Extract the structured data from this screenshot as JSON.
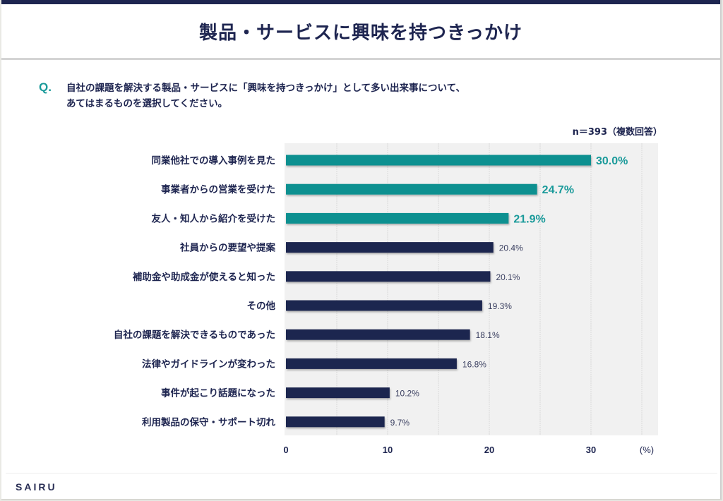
{
  "title": "製品・サービスに興味を持つきっかけ",
  "question": {
    "mark": "Q.",
    "line1": "自社の課題を解決する製品・サービスに「興味を持つきっかけ」として多い出来事について、",
    "line2": "あてはまるものを選択してください。"
  },
  "sample_note": "n＝393（複数回答）",
  "logo": "SAIRU",
  "colors": {
    "highlight": "#0e9090",
    "default": "#1e2550",
    "highlight_label": "#1a9a9a",
    "default_label": "#3a3f60"
  },
  "chart_data": {
    "type": "bar",
    "orientation": "horizontal",
    "title": "製品・サービスに興味を持つきっかけ",
    "xlabel": "(%)",
    "ylabel": "",
    "xlim": [
      0,
      36.5
    ],
    "xticks": [
      0,
      10,
      20,
      30
    ],
    "x_unit_label": "(%)",
    "grid": true,
    "grid_step": 5,
    "categories": [
      "同業他社での導入事例を見た",
      "事業者からの営業を受けた",
      "友人・知人から紹介を受けた",
      "社員からの要望や提案",
      "補助金や助成金が使えると知った",
      "その他",
      "自社の課題を解決できるものであった",
      "法律やガイドラインが変わった",
      "事件が起こり話題になった",
      "利用製品の保守・サポート切れ"
    ],
    "values": [
      30.0,
      24.7,
      21.9,
      20.4,
      20.1,
      19.3,
      18.1,
      16.8,
      10.2,
      9.7
    ],
    "value_labels": [
      "30.0%",
      "24.7%",
      "21.9%",
      "20.4%",
      "20.1%",
      "19.3%",
      "18.1%",
      "16.8%",
      "10.2%",
      "9.7%"
    ],
    "highlighted": [
      true,
      true,
      true,
      false,
      false,
      false,
      false,
      false,
      false,
      false
    ]
  }
}
